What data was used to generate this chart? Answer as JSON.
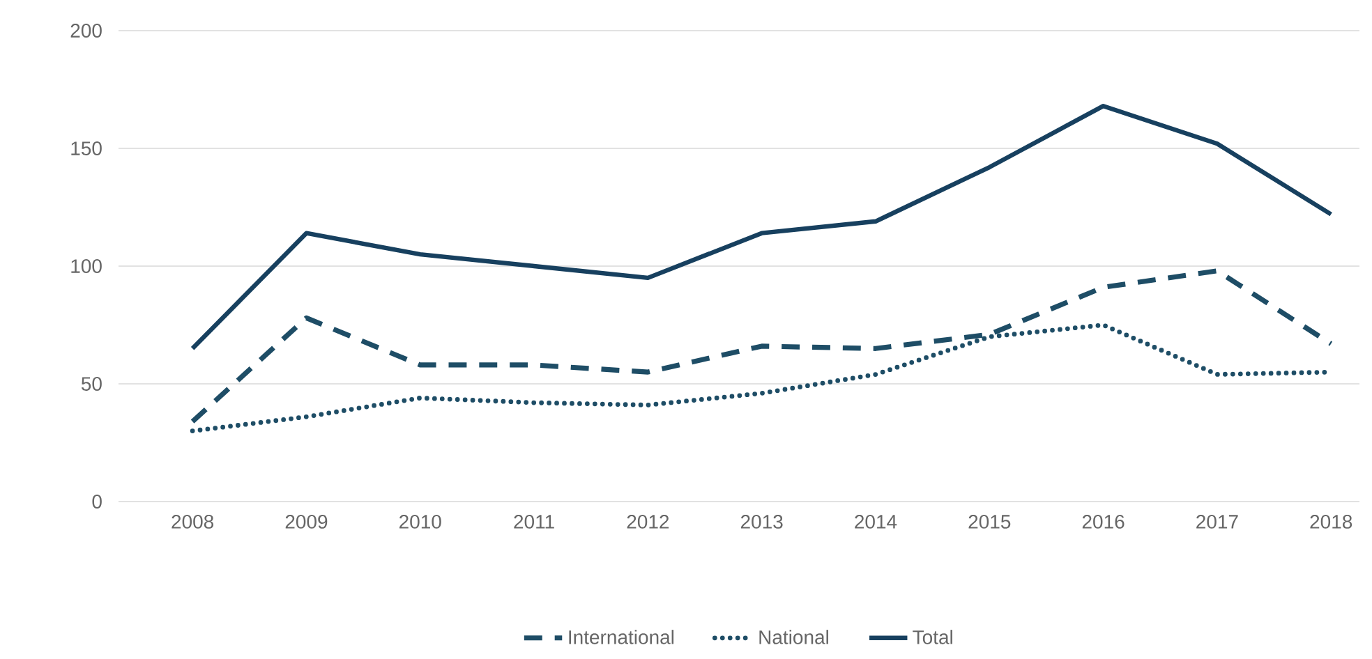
{
  "chart_data": {
    "type": "line",
    "categories": [
      "2008",
      "2009",
      "2010",
      "2011",
      "2012",
      "2013",
      "2014",
      "2015",
      "2016",
      "2017",
      "2018"
    ],
    "series": [
      {
        "name": "International",
        "color": "#1e4d66",
        "line_style": "dashed",
        "values": [
          34,
          78,
          58,
          58,
          55,
          66,
          65,
          71,
          91,
          98,
          67
        ]
      },
      {
        "name": "National",
        "color": "#1e4d66",
        "line_style": "dotted",
        "values": [
          30,
          36,
          44,
          42,
          41,
          46,
          54,
          70,
          75,
          54,
          55
        ]
      },
      {
        "name": "Total",
        "color": "#17405f",
        "line_style": "solid",
        "values": [
          65,
          114,
          105,
          100,
          95,
          114,
          119,
          142,
          168,
          152,
          122
        ]
      }
    ],
    "ylim": [
      0,
      200
    ],
    "yticks": [
      0,
      50,
      100,
      150,
      200
    ],
    "grid": "y",
    "legend": "bottom",
    "marker": "none"
  }
}
